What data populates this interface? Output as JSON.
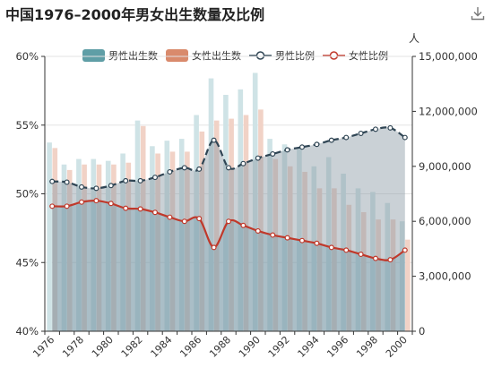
{
  "title": "中国1976–2000年男女出生数量及比例",
  "toolbar": {
    "download_icon": "download-icon"
  },
  "colors": {
    "male_bar": "#cfe3e6",
    "female_bar": "#f1d2c6",
    "male_legend": "#5f9ea6",
    "female_legend": "#d98a6c",
    "male_line": "#2f4554",
    "male_area": "#8a9aa4",
    "female_line": "#c0392b",
    "female_area": "#6f9cab",
    "axis": "#333333",
    "grid": "#e3e3e3"
  },
  "legend": [
    {
      "label": "男性出生数",
      "kind": "bar",
      "series": "male_births"
    },
    {
      "label": "女性出生数",
      "kind": "bar",
      "series": "female_births"
    },
    {
      "label": "男性比例",
      "kind": "line",
      "series": "male_ratio"
    },
    {
      "label": "女性比例",
      "kind": "line",
      "series": "female_ratio"
    }
  ],
  "chart_data": {
    "type": "bar",
    "title": "中国1976–2000年男女出生数量及比例",
    "x": [
      1976,
      1977,
      1978,
      1979,
      1980,
      1981,
      1982,
      1983,
      1984,
      1985,
      1986,
      1987,
      1988,
      1989,
      1990,
      1991,
      1992,
      1993,
      1994,
      1995,
      1996,
      1997,
      1998,
      1999,
      2000
    ],
    "x_tick_labels": [
      "1976",
      "1978",
      "1980",
      "1982",
      "1984",
      "1986",
      "1988",
      "1990",
      "1992",
      "1994",
      "1996",
      "1998",
      "2000"
    ],
    "y_left": {
      "ticks": [
        "40%",
        "45%",
        "50%",
        "55%",
        "60%"
      ],
      "range": [
        40,
        60
      ],
      "unit": "%"
    },
    "y_right": {
      "label": "人",
      "ticks": [
        "0",
        "3,000,000",
        "6,000,000",
        "9,000,000",
        "12,000,000",
        "15,000,000"
      ],
      "range": [
        0,
        15000000
      ]
    },
    "series": [
      {
        "name": "男性出生数",
        "type": "bar",
        "axis": "right",
        "values": [
          10300000,
          9100000,
          9400000,
          9400000,
          9300000,
          9700000,
          11500000,
          10100000,
          10400000,
          10500000,
          11800000,
          13800000,
          12900000,
          13200000,
          14100000,
          10500000,
          10200000,
          10000000,
          9000000,
          9500000,
          8600000,
          7800000,
          7600000,
          7000000,
          6000000
        ]
      },
      {
        "name": "女性出生数",
        "type": "bar",
        "axis": "right",
        "values": [
          10000000,
          8800000,
          9100000,
          9100000,
          9100000,
          9200000,
          11200000,
          9700000,
          9800000,
          9800000,
          10900000,
          11500000,
          11600000,
          11800000,
          12100000,
          9400000,
          9000000,
          8700000,
          7800000,
          7800000,
          6900000,
          6500000,
          6100000,
          6100000,
          5000000
        ]
      },
      {
        "name": "男性比例",
        "type": "line",
        "axis": "left",
        "values": [
          50.9,
          50.85,
          50.5,
          50.4,
          50.6,
          50.95,
          50.95,
          51.2,
          51.6,
          51.9,
          51.8,
          53.9,
          51.9,
          52.2,
          52.6,
          52.9,
          53.2,
          53.4,
          53.6,
          53.9,
          54.1,
          54.4,
          54.7,
          54.8,
          54.1
        ]
      },
      {
        "name": "女性比例",
        "type": "line",
        "axis": "left",
        "values": [
          49.1,
          49.1,
          49.4,
          49.5,
          49.3,
          48.95,
          48.9,
          48.65,
          48.3,
          48.0,
          48.2,
          46.1,
          48.0,
          47.7,
          47.3,
          47.0,
          46.8,
          46.6,
          46.4,
          46.1,
          45.9,
          45.6,
          45.3,
          45.2,
          45.9
        ]
      }
    ],
    "grid": true,
    "legend_position": "top"
  }
}
